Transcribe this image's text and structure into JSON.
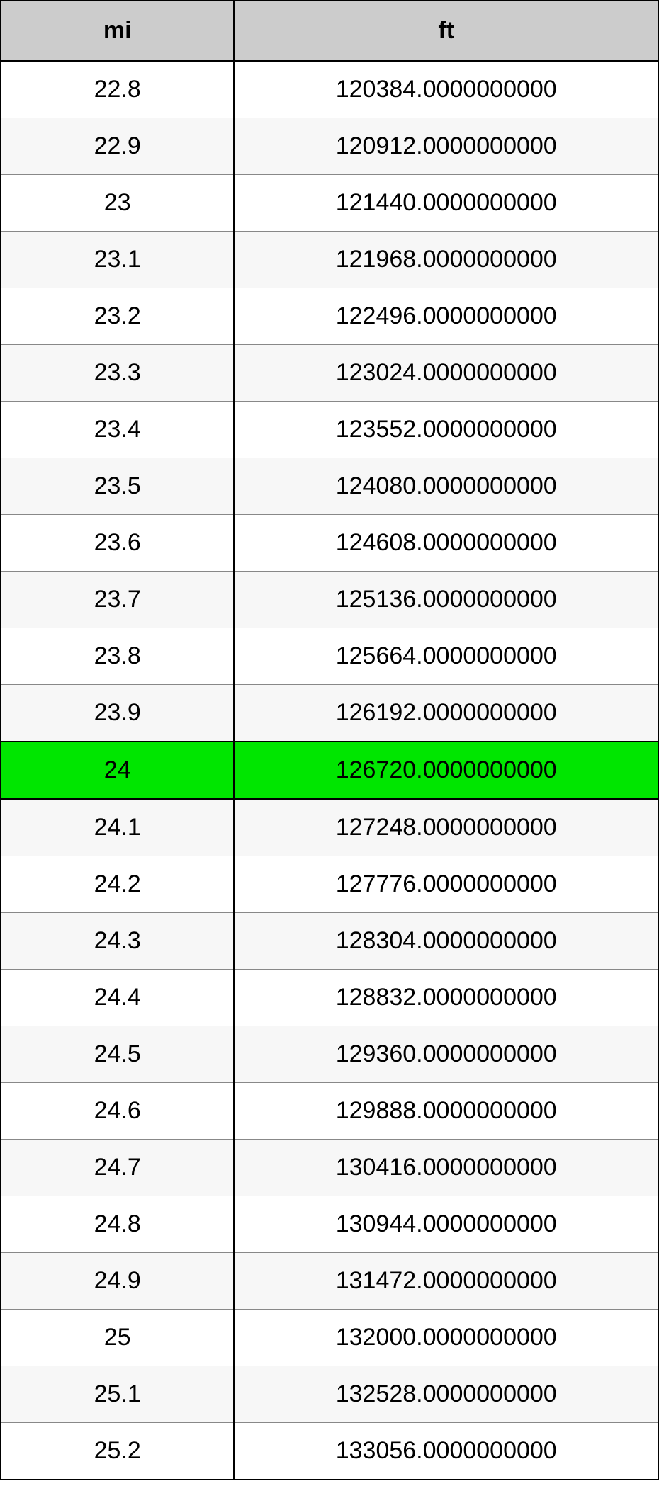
{
  "table": {
    "type": "table",
    "header_bg": "#cccccc",
    "row_colors": {
      "odd": "#ffffff",
      "even": "#f7f7f7"
    },
    "highlight_color": "#00e600",
    "border_color": "#000000",
    "row_border_color": "#888888",
    "text_color": "#000000",
    "font_size": 34,
    "header_font_size": 34,
    "columns": [
      {
        "label": "mi",
        "align": "center"
      },
      {
        "label": "ft",
        "align": "center"
      }
    ],
    "highlight_row_index": 12,
    "rows": [
      {
        "mi": "22.8",
        "ft": "120384.0000000000"
      },
      {
        "mi": "22.9",
        "ft": "120912.0000000000"
      },
      {
        "mi": "23",
        "ft": "121440.0000000000"
      },
      {
        "mi": "23.1",
        "ft": "121968.0000000000"
      },
      {
        "mi": "23.2",
        "ft": "122496.0000000000"
      },
      {
        "mi": "23.3",
        "ft": "123024.0000000000"
      },
      {
        "mi": "23.4",
        "ft": "123552.0000000000"
      },
      {
        "mi": "23.5",
        "ft": "124080.0000000000"
      },
      {
        "mi": "23.6",
        "ft": "124608.0000000000"
      },
      {
        "mi": "23.7",
        "ft": "125136.0000000000"
      },
      {
        "mi": "23.8",
        "ft": "125664.0000000000"
      },
      {
        "mi": "23.9",
        "ft": "126192.0000000000"
      },
      {
        "mi": "24",
        "ft": "126720.0000000000"
      },
      {
        "mi": "24.1",
        "ft": "127248.0000000000"
      },
      {
        "mi": "24.2",
        "ft": "127776.0000000000"
      },
      {
        "mi": "24.3",
        "ft": "128304.0000000000"
      },
      {
        "mi": "24.4",
        "ft": "128832.0000000000"
      },
      {
        "mi": "24.5",
        "ft": "129360.0000000000"
      },
      {
        "mi": "24.6",
        "ft": "129888.0000000000"
      },
      {
        "mi": "24.7",
        "ft": "130416.0000000000"
      },
      {
        "mi": "24.8",
        "ft": "130944.0000000000"
      },
      {
        "mi": "24.9",
        "ft": "131472.0000000000"
      },
      {
        "mi": "25",
        "ft": "132000.0000000000"
      },
      {
        "mi": "25.1",
        "ft": "132528.0000000000"
      },
      {
        "mi": "25.2",
        "ft": "133056.0000000000"
      }
    ]
  }
}
